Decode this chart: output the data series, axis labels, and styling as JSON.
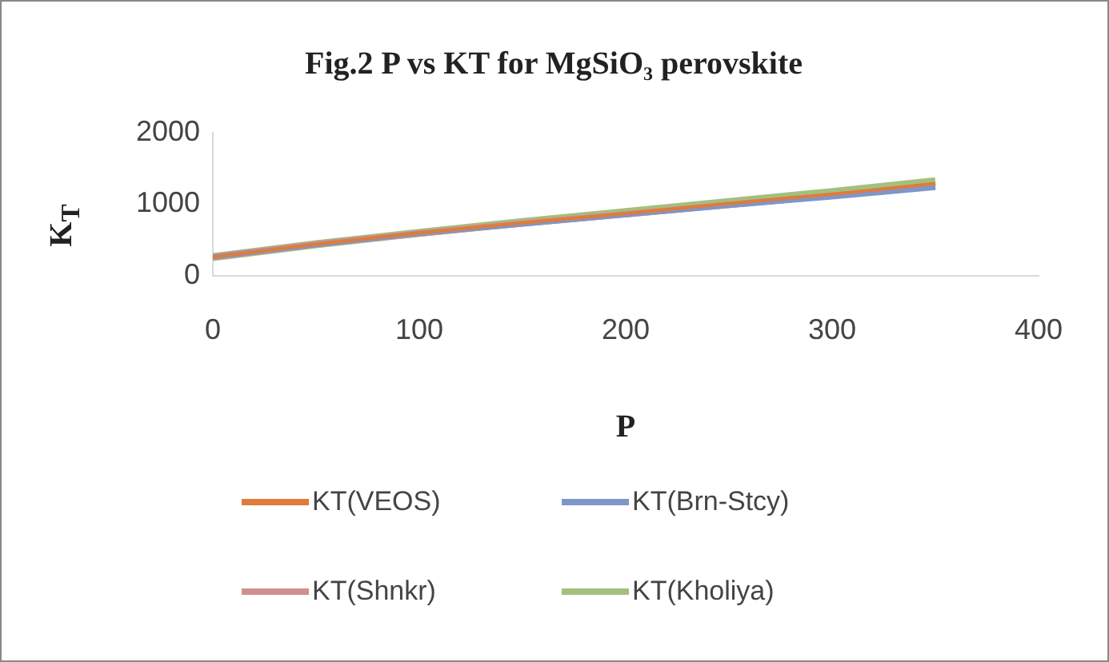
{
  "chart_data": {
    "type": "line",
    "title": "Fig.2 P vs KT for MgSiO₃ perovskite",
    "xlabel": "P",
    "ylabel": "K$_{T}$",
    "x": [
      0,
      50,
      100,
      150,
      200,
      250,
      300,
      350
    ],
    "series": [
      {
        "name": "KT(VEOS)",
        "color": "#e07b39",
        "values": [
          260,
          440,
          600,
          740,
          870,
          1010,
          1140,
          1290
        ]
      },
      {
        "name": "KT(Brn-Stcy)",
        "color": "#7f96c8",
        "values": [
          260,
          430,
          590,
          720,
          850,
          980,
          1100,
          1230
        ]
      },
      {
        "name": "KT(Shnkr)",
        "color": "#d08f8c",
        "values": [
          260,
          440,
          590,
          730,
          860,
          990,
          1120,
          1260
        ]
      },
      {
        "name": "KT(Kholiya)",
        "color": "#a3c07e",
        "values": [
          260,
          440,
          600,
          750,
          890,
          1030,
          1170,
          1320
        ]
      }
    ],
    "xlim": [
      0,
      400
    ],
    "xticks": [
      0,
      100,
      200,
      300,
      400
    ],
    "ylim": [
      0,
      2000
    ],
    "yticks": [
      0,
      1000,
      2000
    ],
    "grid": false,
    "legend": "bottom",
    "marker": "none",
    "line_style": "solid"
  }
}
